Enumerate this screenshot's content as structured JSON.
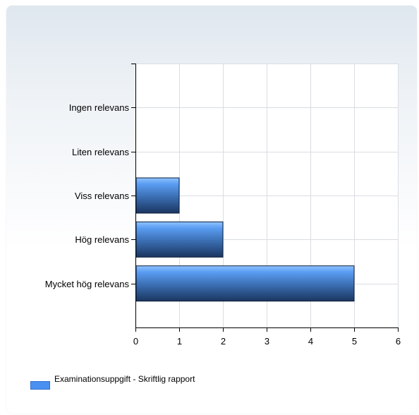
{
  "chart_data": {
    "type": "bar",
    "orientation": "horizontal",
    "categories": [
      "Ingen relevans",
      "Liten relevans",
      "Viss relevans",
      "Hög relevans",
      "Mycket hög relevans"
    ],
    "series": [
      {
        "name": "Examinationsuppgift - Skriftlig rapport",
        "values": [
          0,
          0,
          1,
          2,
          5
        ],
        "color": "#4a90f0"
      }
    ],
    "xlim": [
      0,
      6
    ],
    "xticks": [
      "0",
      "1",
      "2",
      "3",
      "4",
      "5",
      "6"
    ],
    "title": "",
    "xlabel": "",
    "ylabel": "",
    "grid": true,
    "legend_position": "bottom-left"
  }
}
